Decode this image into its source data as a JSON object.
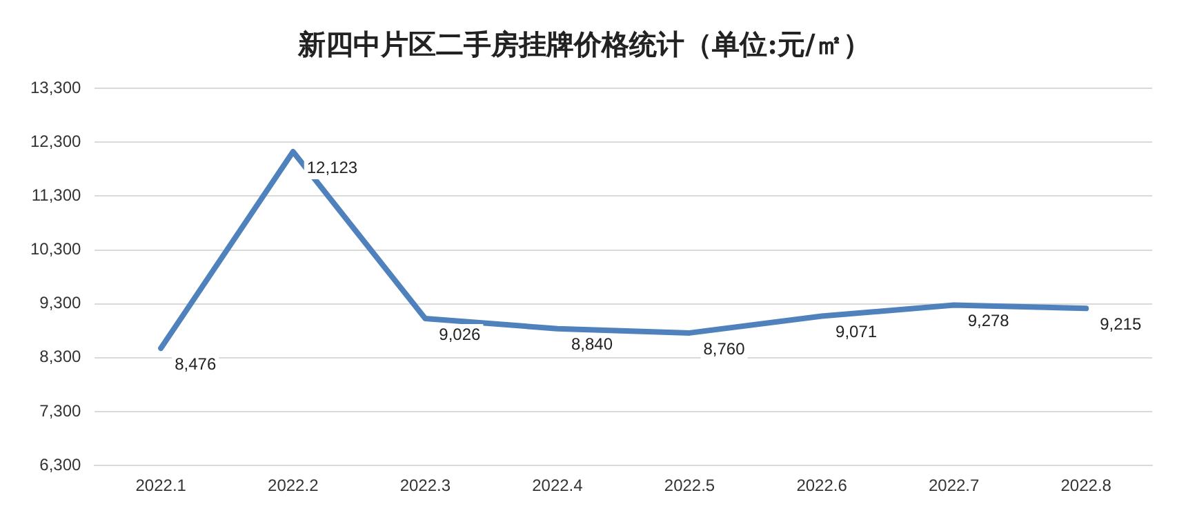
{
  "chart_data": {
    "type": "line",
    "title": "新四中片区二手房挂牌价格统计（单位:元/㎡）",
    "categories": [
      "2022.1",
      "2022.2",
      "2022.3",
      "2022.4",
      "2022.5",
      "2022.6",
      "2022.7",
      "2022.8"
    ],
    "series": [
      {
        "color": "#4f81bd",
        "values": [
          8476,
          12123,
          9026,
          8840,
          8760,
          9071,
          9278,
          9215
        ],
        "value_labels": [
          "8,476",
          "12,123",
          "9,026",
          "8,840",
          "8,760",
          "9,071",
          "9,278",
          "9,215"
        ]
      }
    ],
    "ylim": [
      6300,
      13300
    ],
    "yticks": [
      {
        "value": 6300,
        "label": "6,300"
      },
      {
        "value": 7300,
        "label": "7,300"
      },
      {
        "value": 8300,
        "label": "8,300"
      },
      {
        "value": 9300,
        "label": "9,300"
      },
      {
        "value": 10300,
        "label": "10,300"
      },
      {
        "value": 11300,
        "label": "11,300"
      },
      {
        "value": 12300,
        "label": "12,300"
      },
      {
        "value": 13300,
        "label": "13,300"
      }
    ],
    "grid": "y",
    "marker": "none",
    "line_style": "solid"
  }
}
